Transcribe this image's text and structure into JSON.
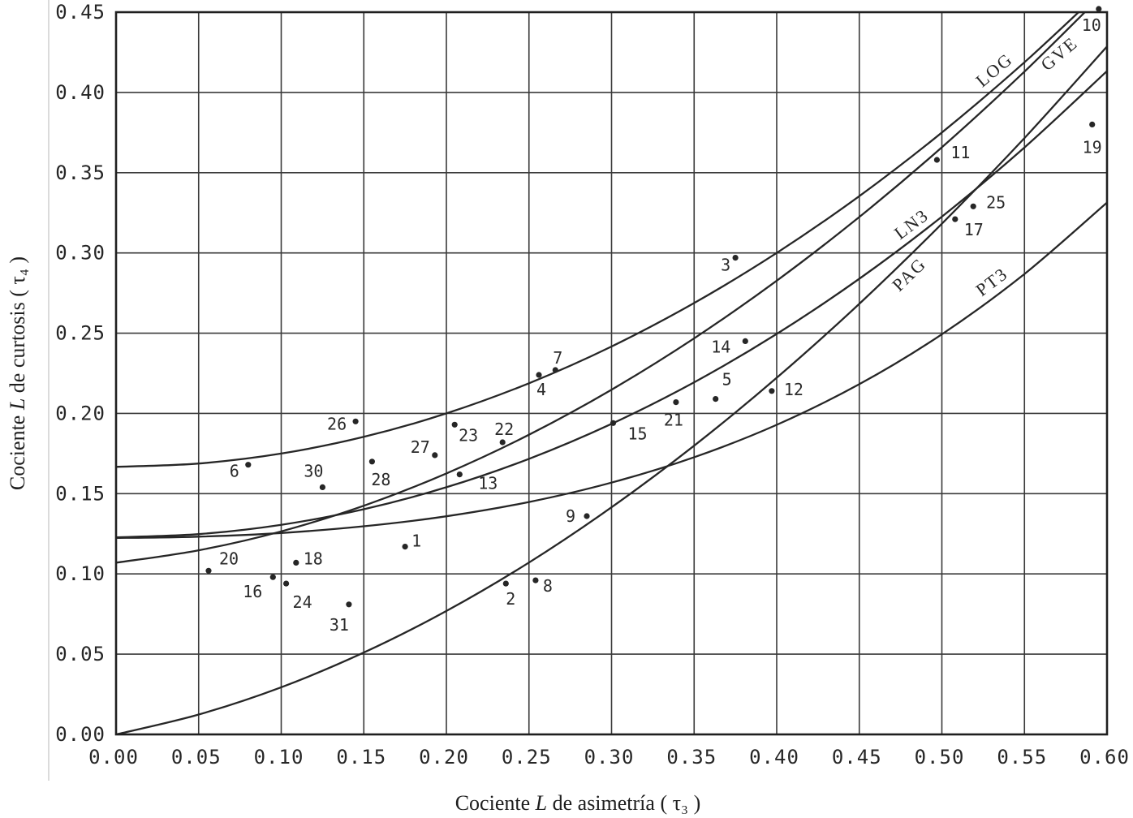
{
  "chart_data": {
    "type": "scatter",
    "xlabel": "Cociente L de asimetría ( τ₃ )",
    "ylabel": "Cociente L de curtosis ( τ₄ )",
    "xlim": [
      0,
      0.6
    ],
    "ylim": [
      0,
      0.45
    ],
    "xticks": [
      "0.00",
      "0.05",
      "0.10",
      "0.15",
      "0.20",
      "0.25",
      "0.30",
      "0.35",
      "0.40",
      "0.45",
      "0.50",
      "0.55",
      "0.60"
    ],
    "yticks": [
      "0.00",
      "0.05",
      "0.10",
      "0.15",
      "0.20",
      "0.25",
      "0.30",
      "0.35",
      "0.40",
      "0.45"
    ],
    "grid": true,
    "x": [
      0,
      0.05,
      0.1,
      0.15,
      0.2,
      0.25,
      0.3,
      0.35,
      0.4,
      0.45,
      0.5,
      0.55,
      0.6
    ],
    "series": [
      {
        "name": "LOG",
        "values": [
          0.1667,
          0.1688,
          0.175,
          0.1854,
          0.2,
          0.2188,
          0.2417,
          0.2688,
          0.3,
          0.3354,
          0.375,
          0.4188,
          0.4667
        ]
      },
      {
        "name": "GVE",
        "values": [
          0.107,
          0.1147,
          0.1265,
          0.1425,
          0.1626,
          0.1867,
          0.2148,
          0.2468,
          0.2827,
          0.3224,
          0.3658,
          0.413,
          0.4638
        ]
      },
      {
        "name": "LN3",
        "values": [
          0.1228,
          0.1248,
          0.1306,
          0.1403,
          0.154,
          0.1717,
          0.1935,
          0.2194,
          0.2495,
          0.2839,
          0.3226,
          0.3657,
          0.4133
        ]
      },
      {
        "name": "PAG",
        "values": [
          0.0,
          0.0124,
          0.0294,
          0.051,
          0.0769,
          0.1071,
          0.1415,
          0.1799,
          0.2222,
          0.2683,
          0.3182,
          0.3716,
          0.4286
        ]
      },
      {
        "name": "PT3",
        "values": [
          0.1224,
          0.1232,
          0.1255,
          0.1297,
          0.1359,
          0.1448,
          0.1569,
          0.1727,
          0.1929,
          0.2182,
          0.2493,
          0.2869,
          0.3314
        ]
      }
    ],
    "points": [
      {
        "label": "1",
        "x": 0.175,
        "y": 0.117
      },
      {
        "label": "2",
        "x": 0.236,
        "y": 0.094
      },
      {
        "label": "3",
        "x": 0.375,
        "y": 0.297
      },
      {
        "label": "4",
        "x": 0.256,
        "y": 0.224
      },
      {
        "label": "5",
        "x": 0.363,
        "y": 0.209
      },
      {
        "label": "6",
        "x": 0.08,
        "y": 0.168
      },
      {
        "label": "7",
        "x": 0.266,
        "y": 0.227
      },
      {
        "label": "8",
        "x": 0.254,
        "y": 0.096
      },
      {
        "label": "9",
        "x": 0.285,
        "y": 0.136
      },
      {
        "label": "10",
        "x": 0.595,
        "y": 0.452
      },
      {
        "label": "11",
        "x": 0.497,
        "y": 0.358
      },
      {
        "label": "12",
        "x": 0.397,
        "y": 0.214
      },
      {
        "label": "13",
        "x": 0.208,
        "y": 0.162
      },
      {
        "label": "14",
        "x": 0.381,
        "y": 0.245
      },
      {
        "label": "15",
        "x": 0.301,
        "y": 0.194
      },
      {
        "label": "16",
        "x": 0.095,
        "y": 0.098
      },
      {
        "label": "17",
        "x": 0.508,
        "y": 0.321
      },
      {
        "label": "18",
        "x": 0.109,
        "y": 0.107
      },
      {
        "label": "19",
        "x": 0.591,
        "y": 0.38
      },
      {
        "label": "20",
        "x": 0.056,
        "y": 0.102
      },
      {
        "label": "21",
        "x": 0.339,
        "y": 0.207
      },
      {
        "label": "22",
        "x": 0.234,
        "y": 0.182
      },
      {
        "label": "23",
        "x": 0.205,
        "y": 0.193
      },
      {
        "label": "24",
        "x": 0.103,
        "y": 0.094
      },
      {
        "label": "25",
        "x": 0.519,
        "y": 0.329
      },
      {
        "label": "26",
        "x": 0.145,
        "y": 0.195
      },
      {
        "label": "27",
        "x": 0.193,
        "y": 0.174
      },
      {
        "label": "28",
        "x": 0.155,
        "y": 0.17
      },
      {
        "label": "30",
        "x": 0.125,
        "y": 0.154
      },
      {
        "label": "31",
        "x": 0.141,
        "y": 0.081
      }
    ]
  },
  "colors": {
    "ink": "#262626",
    "grid": "#3a3a3a",
    "background": "#ffffff"
  }
}
